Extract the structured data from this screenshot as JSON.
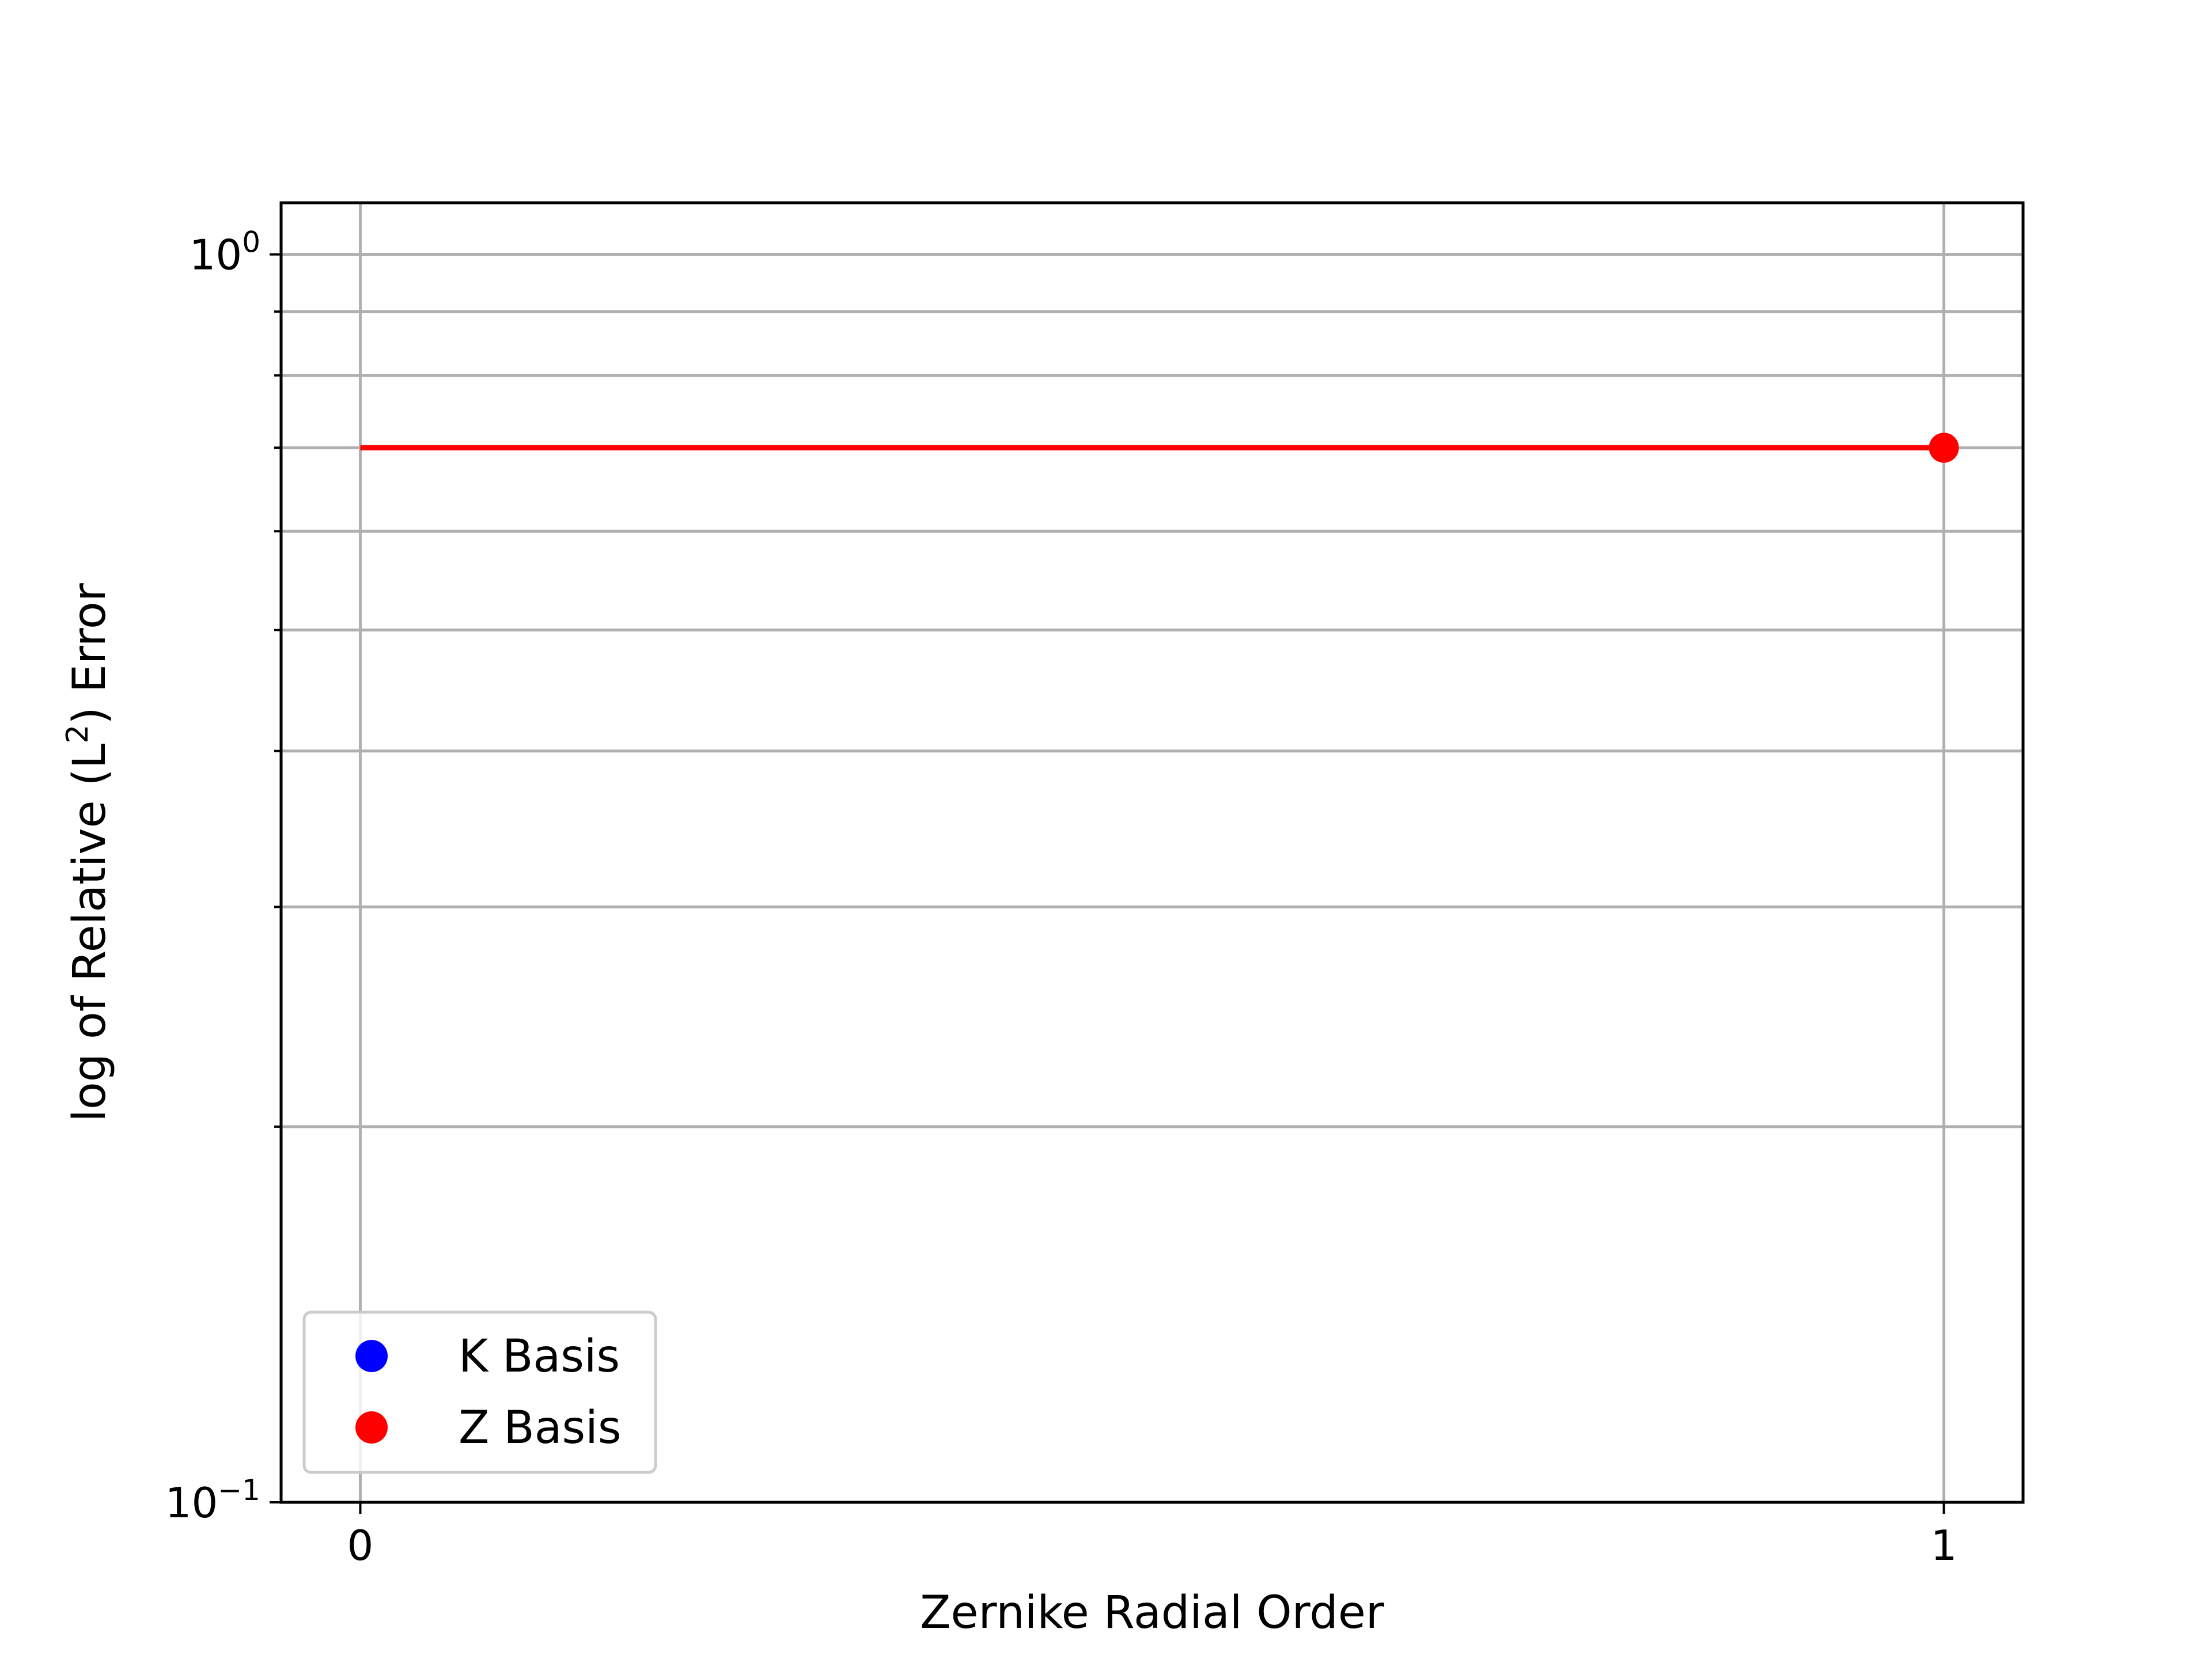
{
  "chart_data": {
    "type": "line",
    "title": "",
    "xlabel": "Zernike Radial Order",
    "ylabel": "log of Relative (L²) Error",
    "ylabel_parts": {
      "before": "log of Relative (L",
      "sup": "2",
      "after": ") Error"
    },
    "yscale": "log",
    "xlim": [
      -0.05,
      1.05
    ],
    "ylim": [
      0.1,
      1.1
    ],
    "x_ticks": [
      {
        "value": 0,
        "label": "0"
      },
      {
        "value": 1,
        "label": "1"
      }
    ],
    "y_major_ticks": [
      {
        "value": 0.1,
        "base": "10",
        "exp": "−1"
      },
      {
        "value": 1.0,
        "base": "10",
        "exp": "0"
      }
    ],
    "y_minor_ticks": [
      0.2,
      0.3,
      0.4,
      0.5,
      0.6,
      0.7,
      0.8,
      0.9
    ],
    "grid": true,
    "legend_position": "lower-left",
    "series": [
      {
        "name": "K Basis",
        "color": "#0000ff",
        "x": [],
        "y": [],
        "line": false
      },
      {
        "name": "Z Basis",
        "color": "#ff0000",
        "x": [
          0,
          1
        ],
        "y": [
          0.7,
          0.7
        ],
        "line": true,
        "marker_at": [
          1
        ]
      }
    ]
  }
}
